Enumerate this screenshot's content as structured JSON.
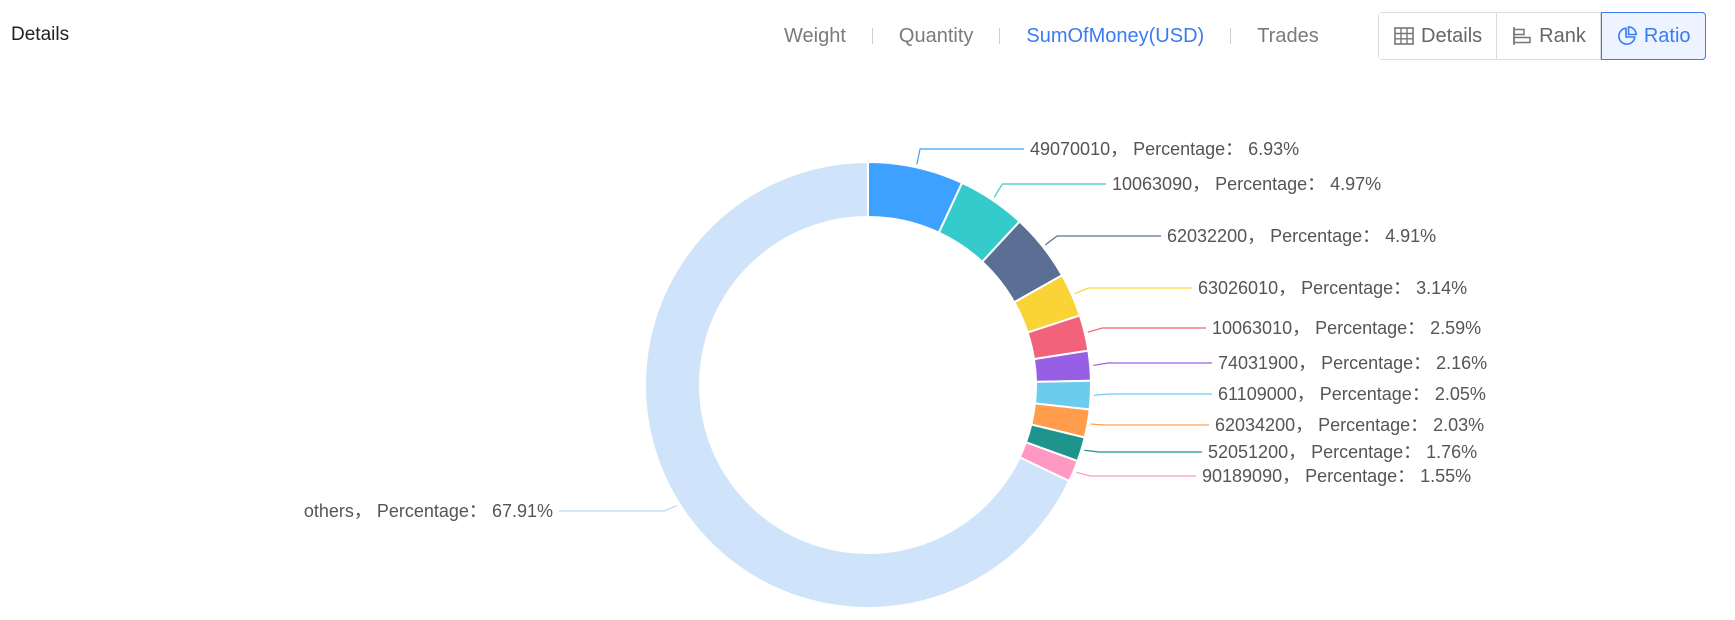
{
  "header": {
    "title": "Details",
    "metric_tabs": [
      {
        "label": "Weight",
        "active": false
      },
      {
        "label": "Quantity",
        "active": false
      },
      {
        "label": "SumOfMoney(USD)",
        "active": true
      },
      {
        "label": "Trades",
        "active": false
      }
    ],
    "view_buttons": [
      {
        "label": "Details",
        "icon": "table-icon",
        "active": false
      },
      {
        "label": "Rank",
        "icon": "bar-rank-icon",
        "active": false
      },
      {
        "label": "Ratio",
        "icon": "pie-chart-icon",
        "active": true
      }
    ]
  },
  "colors": {
    "accent": "#3a7bf2",
    "others": "#cfe4fb"
  },
  "chart_data": {
    "type": "pie",
    "variant": "donut",
    "label_format": "{name}， Percentage： {value}%",
    "slices": [
      {
        "name": "49070010",
        "value": 6.93,
        "color": "#3ea0ff"
      },
      {
        "name": "10063090",
        "value": 4.97,
        "color": "#36cbcb"
      },
      {
        "name": "62032200",
        "value": 4.91,
        "color": "#5b6f94"
      },
      {
        "name": "63026010",
        "value": 3.14,
        "color": "#fad337"
      },
      {
        "name": "10063010",
        "value": 2.59,
        "color": "#f2637b"
      },
      {
        "name": "74031900",
        "value": 2.16,
        "color": "#975fe4"
      },
      {
        "name": "61109000",
        "value": 2.05,
        "color": "#6ccbee"
      },
      {
        "name": "62034200",
        "value": 2.03,
        "color": "#ff9d4d"
      },
      {
        "name": "52051200",
        "value": 1.76,
        "color": "#1f948c"
      },
      {
        "name": "90189090",
        "value": 1.55,
        "color": "#ff99c3"
      },
      {
        "name": "others",
        "value": 67.91,
        "color": "#cfe4fb"
      }
    ]
  }
}
